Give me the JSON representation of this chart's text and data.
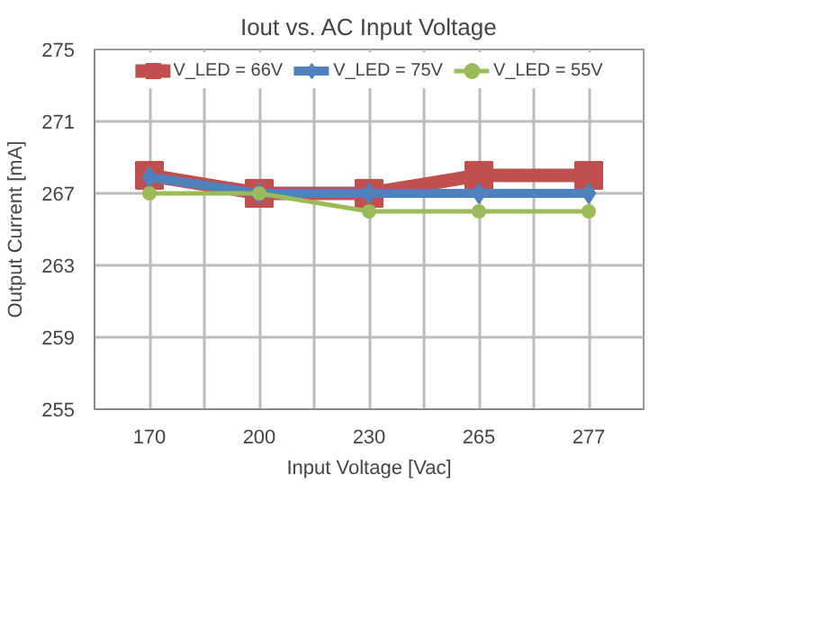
{
  "chart_data": {
    "type": "line",
    "title": "Iout vs. AC Input Voltage",
    "xlabel": "Input Voltage [Vac]",
    "ylabel": "Output Current [mA]",
    "categories": [
      "170",
      "200",
      "230",
      "265",
      "277"
    ],
    "series": [
      {
        "name": "V_LED = 66V",
        "color": "#c0504d",
        "values": [
          268,
          267,
          267,
          268,
          268
        ],
        "marker": "square"
      },
      {
        "name": "V_LED = 75V",
        "color": "#4f81bd",
        "values": [
          267.9,
          267,
          267,
          267,
          267
        ],
        "marker": "diamond"
      },
      {
        "name": "V_LED = 55V",
        "color": "#9bbb59",
        "values": [
          267,
          267,
          266,
          266,
          266
        ],
        "marker": "circle"
      }
    ],
    "ylim": [
      255,
      275
    ],
    "yticks": [
      255,
      259,
      263,
      267,
      271,
      275
    ],
    "grid": true,
    "legend": "top",
    "line_style": "solid"
  }
}
